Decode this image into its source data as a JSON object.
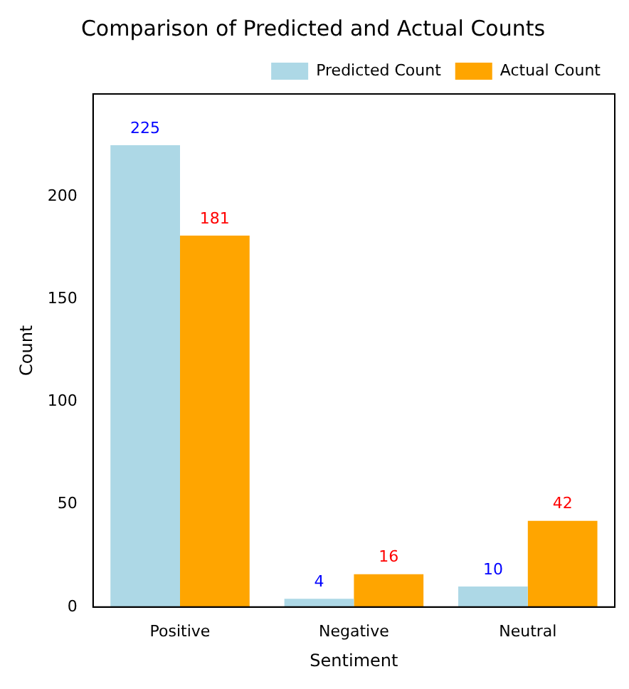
{
  "chart_data": {
    "type": "bar",
    "title": "Comparison of Predicted and Actual Counts",
    "xlabel": "Sentiment",
    "ylabel": "Count",
    "categories": [
      "Positive",
      "Negative",
      "Neutral"
    ],
    "series": [
      {
        "name": "Predicted Count",
        "color": "#add8e6",
        "values": [
          225,
          4,
          10
        ]
      },
      {
        "name": "Actual Count",
        "color": "#ffa500",
        "values": [
          181,
          16,
          42
        ]
      }
    ],
    "ylim": [
      0,
      250
    ],
    "yticks": [
      0,
      50,
      100,
      150,
      200
    ],
    "grid": false,
    "legend": "top right",
    "data_labels": true
  }
}
